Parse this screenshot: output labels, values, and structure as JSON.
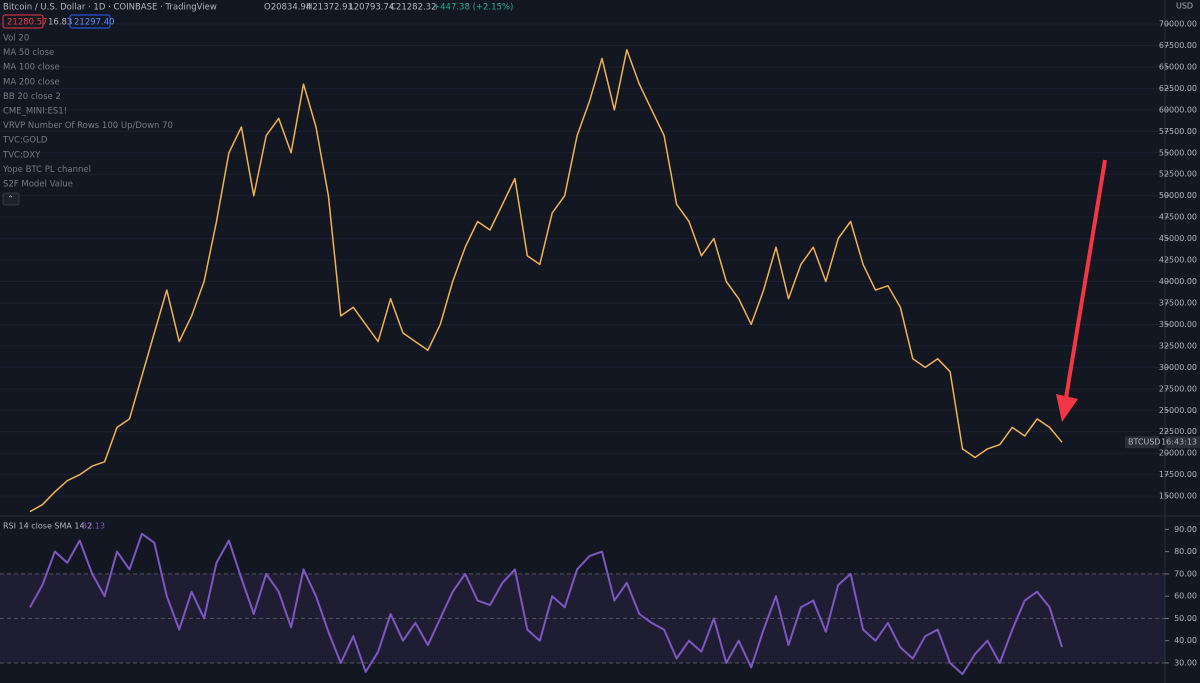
{
  "header": {
    "symbol": "Bitcoin / U.S. Dollar · 1D · COINBASE · TradingView",
    "open": "O20834.94",
    "high": "H21372.93",
    "low": "L20793.74",
    "close": "C21282.32",
    "change": "+447.38 (+2.15%)",
    "sell": "21280.57",
    "spread": "16.83",
    "buy": "21297.40",
    "indicators": [
      "Vol 20",
      "MA 50 close",
      "MA 100 close",
      "MA 200 close",
      "BB 20 close 2",
      "CME_MINI:ES1!",
      "VRVP Number Of Rows 100 Up/Down 70",
      "TVC:GOLD",
      "TVC:DXY",
      "Yope BTC PL channel",
      "S2F Model Value"
    ]
  },
  "chart_data": [
    {
      "type": "line",
      "currency": "USD",
      "last_label": "BTCUSD",
      "countdown": "16:43:13",
      "color": "#f0b255",
      "grid": true,
      "ylim": [
        12800,
        72800
      ],
      "yticks": [
        {
          "value": 15000,
          "label": "15000.00"
        },
        {
          "value": 17500,
          "label": "17500.00"
        },
        {
          "value": 20000,
          "label": "20000.00"
        },
        {
          "value": 22500,
          "label": "22500.00"
        },
        {
          "value": 25000,
          "label": "25000.00"
        },
        {
          "value": 27500,
          "label": "27500.00"
        },
        {
          "value": 30000,
          "label": "30000.00"
        },
        {
          "value": 32500,
          "label": "32500.00"
        },
        {
          "value": 35000,
          "label": "35000.00"
        },
        {
          "value": 37500,
          "label": "37500.00"
        },
        {
          "value": 40000,
          "label": "40000.00"
        },
        {
          "value": 42500,
          "label": "42500.00"
        },
        {
          "value": 45000,
          "label": "45000.00"
        },
        {
          "value": 47500,
          "label": "47500.00"
        },
        {
          "value": 50000,
          "label": "50000.00"
        },
        {
          "value": 52500,
          "label": "52500.00"
        },
        {
          "value": 55000,
          "label": "55000.00"
        },
        {
          "value": 57500,
          "label": "57500.00"
        },
        {
          "value": 60000,
          "label": "60000.00"
        },
        {
          "value": 62500,
          "label": "62500.00"
        },
        {
          "value": 65000,
          "label": "65000.00"
        },
        {
          "value": 67500,
          "label": "67500.00"
        },
        {
          "value": 70000,
          "label": "70000.00"
        }
      ],
      "values": [
        13200,
        14000,
        15500,
        16800,
        17500,
        18500,
        19000,
        23000,
        24000,
        29000,
        34000,
        39000,
        33000,
        36000,
        40000,
        47000,
        55000,
        58000,
        50000,
        57000,
        59000,
        55000,
        63000,
        58000,
        50000,
        36000,
        37000,
        35000,
        33000,
        38000,
        34000,
        33000,
        32000,
        35000,
        40000,
        44000,
        47000,
        46000,
        49000,
        52000,
        43000,
        42000,
        48000,
        50000,
        57000,
        61000,
        66000,
        60000,
        67000,
        63000,
        60000,
        57000,
        49000,
        47000,
        43000,
        45000,
        40000,
        38000,
        35000,
        39000,
        44000,
        38000,
        42000,
        44000,
        40000,
        45000,
        47000,
        42000,
        39000,
        39500,
        37000,
        31000,
        30000,
        31000,
        29500,
        20500,
        19500,
        20500,
        21000,
        23000,
        22000,
        24000,
        23000,
        21280
      ]
    },
    {
      "type": "line",
      "name": "RSI 14 close SMA 14 2",
      "value_label": "37.13",
      "color": "#7e57c2",
      "levels": [
        30,
        50,
        70
      ],
      "ylim": [
        21,
        96
      ],
      "yticks": [
        {
          "value": 30,
          "label": "30.00"
        },
        {
          "value": 40,
          "label": "40.00"
        },
        {
          "value": 50,
          "label": "50.00"
        },
        {
          "value": 60,
          "label": "60.00"
        },
        {
          "value": 70,
          "label": "70.00"
        },
        {
          "value": 80,
          "label": "80.00"
        },
        {
          "value": 90,
          "label": "90.00"
        }
      ],
      "values": [
        55,
        65,
        80,
        75,
        85,
        70,
        60,
        80,
        72,
        88,
        84,
        60,
        45,
        62,
        50,
        75,
        85,
        68,
        52,
        70,
        62,
        46,
        72,
        60,
        44,
        30,
        42,
        26,
        35,
        52,
        40,
        48,
        38,
        50,
        62,
        70,
        58,
        56,
        66,
        72,
        45,
        40,
        60,
        55,
        72,
        78,
        80,
        58,
        66,
        52,
        48,
        45,
        32,
        40,
        35,
        50,
        30,
        40,
        28,
        45,
        60,
        38,
        55,
        58,
        44,
        65,
        70,
        45,
        40,
        48,
        37,
        32,
        42,
        45,
        30,
        25,
        34,
        40,
        30,
        45,
        58,
        62,
        55,
        37.13
      ]
    }
  ]
}
